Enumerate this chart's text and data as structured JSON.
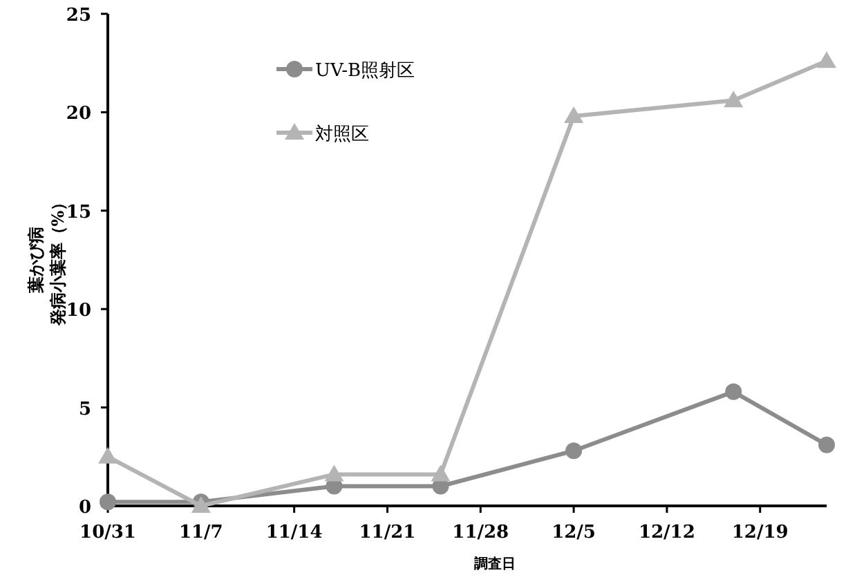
{
  "chart_data": {
    "type": "line",
    "xlabel": "調査日",
    "ylabel": [
      "葉かび病",
      "発病小葉率（%）"
    ],
    "x": [
      "--10-31",
      "--11-07",
      "--11-17",
      "--11-25",
      "--12-05",
      "--12-17",
      "--12-24"
    ],
    "series": [
      {
        "name": "UV-B照射区",
        "color": "#8c8c8c",
        "marker": "circle",
        "values": [
          0.2,
          0.2,
          1.0,
          1.0,
          2.8,
          5.8,
          3.1
        ]
      },
      {
        "name": "対照区",
        "color": "#b4b4b4",
        "marker": "triangle",
        "values": [
          2.5,
          0,
          1.6,
          1.6,
          19.8,
          20.6,
          22.6
        ]
      }
    ],
    "xlim": [
      "--10-31",
      "--12-24"
    ],
    "xticks": [
      {
        "value": "--10-31",
        "label": "10/31"
      },
      {
        "value": "--11-07",
        "label": "11/7"
      },
      {
        "value": "--11-14",
        "label": "11/14"
      },
      {
        "value": "--11-21",
        "label": "11/21"
      },
      {
        "value": "--11-28",
        "label": "11/28"
      },
      {
        "value": "--12-05",
        "label": "12/5"
      },
      {
        "value": "--12-12",
        "label": "12/12"
      },
      {
        "value": "--12-19",
        "label": "12/19"
      }
    ],
    "ylim": [
      0,
      25
    ],
    "yticks": [
      0,
      5,
      10,
      15,
      20,
      25
    ],
    "legend": "top left",
    "line_style": "solid"
  }
}
